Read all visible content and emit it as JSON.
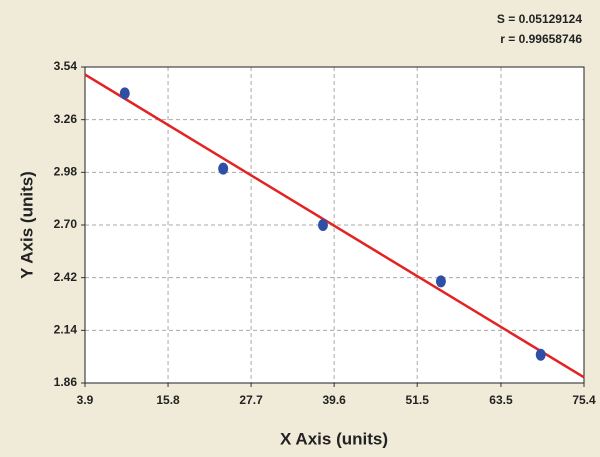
{
  "chart_data": {
    "type": "scatter",
    "annotations": [
      "S = 0.05129124",
      "r = 0.99658746"
    ],
    "x_label": "X Axis (units)",
    "y_label": "Y Axis (units)",
    "points": {
      "x": [
        9.6,
        23.7,
        38.0,
        54.9,
        69.2
      ],
      "y": [
        3.4,
        3.0,
        2.7,
        2.4,
        2.01
      ],
      "color": "#2f4fa6"
    },
    "fit": {
      "x": [
        3.9,
        75.4
      ],
      "y": [
        3.5,
        1.89
      ],
      "color": "#e32222"
    },
    "xlim": [
      3.9,
      75.4
    ],
    "xticks": [
      3.9,
      15.8,
      27.7,
      39.6,
      51.5,
      63.5,
      75.4
    ],
    "ylim": [
      1.86,
      3.54
    ],
    "yticks": [
      1.86,
      2.14,
      2.42,
      {
        "value": 2.7,
        "label": "2.70"
      },
      2.98,
      3.26,
      3.54
    ],
    "grid": true
  }
}
